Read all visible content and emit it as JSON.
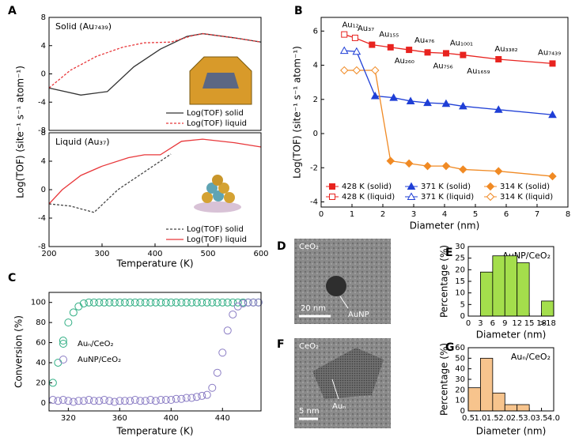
{
  "chart_data": [
    {
      "type": "line",
      "panel": "A",
      "title": "Solid (Au₇₄₃₉)",
      "ylabel": "Log(TOF) (site⁻¹ s⁻¹ atom⁻¹)",
      "xlim": [
        200,
        600
      ],
      "ylim": [
        -8,
        8
      ],
      "yticks": [
        -8,
        -4,
        0,
        4,
        8
      ],
      "legend": "lower right",
      "series": [
        {
          "name": "Log(TOF) solid",
          "color": "#333333",
          "dash": false,
          "x": [
            200,
            260,
            310,
            360,
            410,
            460,
            490,
            550,
            600
          ],
          "values": [
            -2,
            -3,
            -2.5,
            1,
            3.5,
            5.3,
            5.7,
            5.1,
            4.5
          ]
        },
        {
          "name": "Log(TOF) liquid",
          "color": "#e8373a",
          "dash": true,
          "x": [
            200,
            240,
            290,
            340,
            380,
            430,
            470,
            490,
            550,
            600
          ],
          "values": [
            -2,
            0.5,
            2.5,
            3.8,
            4.4,
            4.5,
            5.4,
            5.7,
            5.1,
            4.5
          ]
        }
      ]
    },
    {
      "type": "line",
      "title": "Liquid (Au₃₇)",
      "xlabel": "Temperature (K)",
      "xlim": [
        200,
        600
      ],
      "ylim": [
        -8,
        8
      ],
      "xticks": [
        200,
        300,
        400,
        500,
        600
      ],
      "yticks": [
        -8,
        -4,
        0,
        4,
        8
      ],
      "legend": "lower right",
      "series": [
        {
          "name": "Log(TOF) solid",
          "color": "#444444",
          "dash": true,
          "x": [
            200,
            240,
            285,
            330,
            380,
            430
          ],
          "values": [
            -2,
            -2.3,
            -3.2,
            0,
            2.5,
            5
          ]
        },
        {
          "name": "Log(TOF) liquid",
          "color": "#e8373a",
          "dash": false,
          "x": [
            200,
            225,
            260,
            300,
            350,
            380,
            410,
            450,
            490,
            550,
            600
          ],
          "values": [
            -2,
            0,
            2,
            3.3,
            4.5,
            4.9,
            4.9,
            6.8,
            7.1,
            6.6,
            6
          ]
        }
      ]
    },
    {
      "type": "line",
      "panel": "B",
      "xlabel": "Diameter (nm)",
      "ylabel": "Log(TOF) (site⁻¹ s⁻¹ atom⁻¹)",
      "xlim": [
        0,
        8
      ],
      "ylim": [
        -4.3,
        6.8
      ],
      "xticks": [
        0,
        1,
        2,
        3,
        4,
        5,
        6,
        7,
        8
      ],
      "yticks": [
        -4,
        -2,
        0,
        2,
        4,
        6
      ],
      "legend": "lower left",
      "annotations": [
        "Au₁₂",
        "Au₃₇",
        "Au₁₅₅",
        "Au₂₆₀",
        "Au₄₇₆",
        "Au₇₅₆",
        "Au₁₀₀₁",
        "Au₁₆₅₉",
        "Au₃₃₈₂",
        "Au₇₄₃₉"
      ],
      "series": [
        {
          "name": "428 K (solid)",
          "color": "#e8231f",
          "marker": "square",
          "filled": true,
          "x": [
            1.65,
            2.25,
            2.85,
            3.45,
            4.05,
            4.6,
            5.75,
            7.5
          ],
          "values": [
            5.2,
            5.05,
            4.9,
            4.75,
            4.7,
            4.6,
            4.35,
            4.1
          ]
        },
        {
          "name": "428 K (liquid)",
          "color": "#e8231f",
          "marker": "square",
          "filled": false,
          "x": [
            0.75,
            1.1
          ],
          "values": [
            5.8,
            5.6
          ]
        },
        {
          "name": "371 K (solid)",
          "color": "#1f3fd6",
          "marker": "triangle",
          "filled": true,
          "x": [
            1.75,
            2.35,
            2.9,
            3.45,
            4.05,
            4.6,
            5.75,
            7.5
          ],
          "values": [
            2.2,
            2.1,
            1.9,
            1.8,
            1.75,
            1.6,
            1.4,
            1.1
          ]
        },
        {
          "name": "371 K (liquid)",
          "color": "#1f3fd6",
          "marker": "triangle",
          "filled": false,
          "x": [
            0.75,
            1.15
          ],
          "values": [
            4.85,
            4.8
          ]
        },
        {
          "name": "314 K (solid)",
          "color": "#f08a24",
          "marker": "diamond",
          "filled": true,
          "x": [
            2.25,
            2.85,
            3.45,
            4.05,
            4.6,
            5.75,
            7.5
          ],
          "values": [
            -1.6,
            -1.75,
            -1.9,
            -1.9,
            -2.1,
            -2.2,
            -2.5
          ]
        },
        {
          "name": "314 K (liquid)",
          "color": "#f08a24",
          "marker": "diamond",
          "filled": false,
          "x": [
            0.75,
            1.15,
            1.75
          ],
          "values": [
            3.7,
            3.7,
            3.7
          ]
        }
      ]
    },
    {
      "type": "scatter",
      "panel": "C",
      "xlabel": "Temperature (K)",
      "ylabel": "Conversion (%)",
      "xlim": [
        305,
        470
      ],
      "ylim": [
        -8,
        110
      ],
      "xticks": [
        320,
        360,
        400,
        440
      ],
      "yticks": [
        0,
        20,
        40,
        60,
        80,
        100
      ],
      "legend": "center left",
      "x": [
        308,
        312,
        316,
        320,
        324,
        328,
        332,
        336,
        340,
        344,
        348,
        352,
        356,
        360,
        364,
        368,
        372,
        376,
        380,
        384,
        388,
        392,
        396,
        400,
        404,
        408,
        412,
        416,
        420,
        424,
        428,
        432,
        436,
        440,
        444,
        448,
        452,
        456,
        460,
        464,
        468
      ],
      "series": [
        {
          "name": "Auₙ/CeO₂",
          "color": "#2fae83",
          "values": [
            20,
            40,
            62,
            80,
            90,
            96,
            99,
            100,
            100,
            100,
            100,
            100,
            100,
            100,
            100,
            100,
            100,
            100,
            100,
            100,
            100,
            100,
            100,
            100,
            100,
            100,
            100,
            100,
            100,
            100,
            100,
            100,
            100,
            100,
            100,
            100,
            100,
            100,
            100,
            100,
            100
          ]
        },
        {
          "name": "AuNP/CeO₂",
          "color": "#8a7cc4",
          "values": [
            3,
            2,
            3,
            2,
            1,
            2,
            2,
            3,
            2,
            2,
            3,
            2,
            1,
            2,
            2,
            2,
            3,
            2,
            2,
            3,
            2,
            3,
            3,
            3,
            4,
            4,
            5,
            5,
            6,
            7,
            8,
            15,
            30,
            50,
            72,
            88,
            96,
            99,
            100,
            100,
            100
          ]
        }
      ]
    },
    {
      "type": "histogram",
      "panel": "E",
      "title": "AuNP/CeO₂",
      "xlabel": "Diameter (nm)",
      "ylabel": "Percentage (%)",
      "color": "#a4de4c",
      "xlim": [
        0,
        21
      ],
      "ylim": [
        0,
        30
      ],
      "xticks": [
        0,
        3,
        6,
        9,
        12,
        15,
        18,
        {
          "value": 19.5,
          "label": ">18"
        }
      ],
      "yticks": [
        0,
        5,
        10,
        15,
        20,
        25,
        30
      ],
      "bins": [
        3,
        6,
        9,
        12,
        15,
        18,
        21
      ],
      "counts": [
        19,
        26,
        26,
        23,
        0,
        6.5
      ]
    },
    {
      "type": "histogram",
      "panel": "G",
      "title": "Auₙ/CeO₂",
      "xlabel": "Diameter (nm)",
      "ylabel": "Percentage (%)",
      "color": "#f7c48d",
      "xlim": [
        0.5,
        4.0
      ],
      "ylim": [
        0,
        60
      ],
      "xticks": [
        0.5,
        {
          "value": 1,
          "label": "1.0"
        },
        1.5,
        {
          "value": 2,
          "label": "2.0"
        },
        2.5,
        {
          "value": 3,
          "label": "3.0"
        },
        3.5,
        {
          "value": 4,
          "label": "4.0"
        }
      ],
      "yticks": [
        0,
        10,
        20,
        30,
        40,
        50,
        60
      ],
      "bins": [
        0.5,
        1,
        1.5,
        2,
        2.5,
        3,
        3.5,
        4
      ],
      "counts": [
        22,
        50,
        17,
        6,
        6,
        0,
        0
      ]
    }
  ],
  "images": [
    {
      "panel": "D",
      "material": "CeO₂",
      "scale_bar": "20 nm",
      "particle": "AuNP"
    },
    {
      "panel": "F",
      "material": "CeO₂",
      "scale_bar": "5 nm",
      "particle": "Auₙ"
    }
  ]
}
